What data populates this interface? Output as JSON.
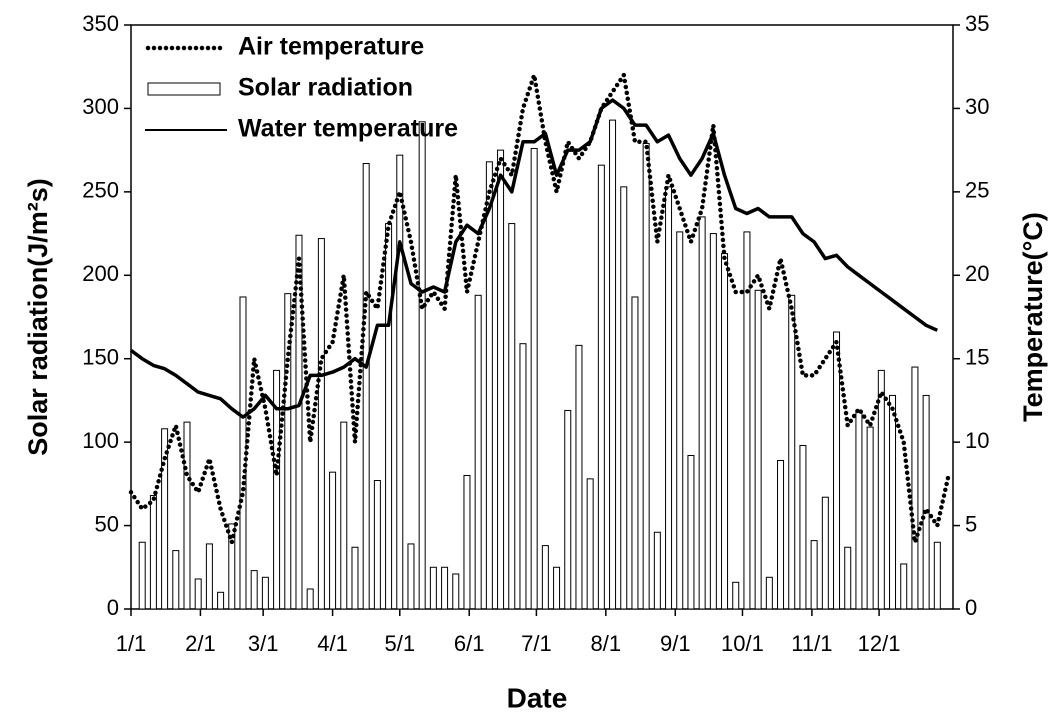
{
  "chart_data": {
    "type": "combo",
    "xlabel": "Date",
    "ylabel": "Solar radiation(J/m²s)",
    "y2label": "Temperature(°C)",
    "xlim": [
      0,
      367
    ],
    "xticks": [
      {
        "value": 0,
        "label": "1/1"
      },
      {
        "value": 31,
        "label": "2/1"
      },
      {
        "value": 59,
        "label": "3/1"
      },
      {
        "value": 90,
        "label": "4/1"
      },
      {
        "value": 120,
        "label": "5/1"
      },
      {
        "value": 151,
        "label": "6/1"
      },
      {
        "value": 181,
        "label": "7/1"
      },
      {
        "value": 212,
        "label": "8/1"
      },
      {
        "value": 243,
        "label": "9/1"
      },
      {
        "value": 273,
        "label": "10/1"
      },
      {
        "value": 304,
        "label": "11/1"
      },
      {
        "value": 334,
        "label": "12/1"
      }
    ],
    "ylim": [
      0,
      350
    ],
    "yticks": [
      0,
      50,
      100,
      150,
      200,
      250,
      300,
      350
    ],
    "y2lim": [
      0,
      35
    ],
    "y2ticks": [
      0,
      5,
      10,
      15,
      20,
      25,
      30,
      35
    ],
    "legend": "upper left",
    "series": [
      {
        "name": "Air temperature",
        "type": "dotted",
        "axis": "y2",
        "color": "#000000",
        "x": [
          0,
          5,
          10,
          15,
          20,
          25,
          30,
          35,
          40,
          45,
          50,
          55,
          60,
          65,
          70,
          75,
          80,
          85,
          90,
          95,
          100,
          105,
          110,
          115,
          120,
          125,
          130,
          135,
          140,
          145,
          150,
          155,
          160,
          165,
          170,
          175,
          180,
          185,
          190,
          195,
          200,
          205,
          210,
          215,
          220,
          225,
          230,
          235,
          240,
          245,
          250,
          255,
          260,
          265,
          270,
          275,
          280,
          285,
          290,
          295,
          300,
          305,
          310,
          315,
          320,
          325,
          330,
          335,
          340,
          345,
          350,
          355,
          360,
          365
        ],
        "values": [
          7,
          6,
          6.5,
          9,
          11,
          8,
          7,
          9,
          6,
          4,
          7,
          15,
          12,
          8,
          15,
          21,
          10,
          15,
          16,
          20,
          10,
          19,
          18,
          23,
          25,
          22,
          18,
          19,
          18,
          26,
          19,
          22,
          25,
          27,
          26,
          30,
          32,
          28,
          25,
          28,
          27,
          28,
          30,
          31,
          32,
          28,
          28,
          22,
          26,
          24,
          22,
          24,
          29,
          21,
          19,
          19,
          20,
          18,
          21,
          18,
          14,
          14,
          15,
          16,
          11,
          12,
          11,
          13,
          12,
          10,
          4,
          6,
          5,
          8
        ]
      },
      {
        "name": "Solar radiation",
        "type": "bar",
        "color": "#ffffff",
        "x": [
          5,
          10,
          15,
          20,
          25,
          30,
          35,
          40,
          45,
          50,
          55,
          60,
          65,
          70,
          75,
          80,
          85,
          90,
          95,
          100,
          105,
          110,
          115,
          120,
          125,
          130,
          135,
          140,
          145,
          150,
          155,
          160,
          165,
          170,
          175,
          180,
          185,
          190,
          195,
          200,
          205,
          210,
          215,
          220,
          225,
          230,
          235,
          240,
          245,
          250,
          255,
          260,
          265,
          270,
          275,
          280,
          285,
          290,
          295,
          300,
          305,
          310,
          315,
          320,
          325,
          330,
          335,
          340,
          345,
          350,
          355,
          360
        ],
        "values": [
          40,
          68,
          108,
          35,
          112,
          18,
          39,
          10,
          51,
          187,
          23,
          19,
          143,
          189,
          224,
          12,
          222,
          82,
          112,
          37,
          267,
          77,
          231,
          272,
          39,
          292,
          25,
          25,
          21,
          80,
          188,
          268,
          275,
          231,
          159,
          276,
          38,
          25,
          119,
          158,
          78,
          266,
          293,
          253,
          187,
          279,
          46,
          253,
          226,
          92,
          235,
          225,
          213,
          16,
          226,
          191,
          19,
          89,
          188,
          98,
          41,
          67,
          166,
          37,
          118,
          109,
          143,
          128,
          27,
          145,
          128,
          40
        ]
      },
      {
        "name": "Water temperature",
        "type": "line",
        "axis": "y2",
        "color": "#000000",
        "x": [
          0,
          5,
          10,
          15,
          20,
          25,
          30,
          35,
          40,
          45,
          50,
          55,
          60,
          65,
          70,
          75,
          80,
          85,
          90,
          95,
          100,
          105,
          110,
          115,
          120,
          125,
          130,
          135,
          140,
          145,
          150,
          155,
          160,
          165,
          170,
          175,
          180,
          185,
          190,
          195,
          200,
          205,
          210,
          215,
          220,
          225,
          230,
          235,
          240,
          245,
          250,
          255,
          260,
          265,
          270,
          275,
          280,
          285,
          290,
          295,
          300,
          305,
          310,
          315,
          320,
          325,
          330,
          335,
          340,
          345,
          350,
          355,
          360
        ],
        "values": [
          15.5,
          15,
          14.6,
          14.4,
          14,
          13.5,
          13,
          12.8,
          12.6,
          12,
          11.5,
          12,
          12.8,
          12,
          12,
          12.2,
          14,
          14,
          14.2,
          14.5,
          15,
          14.5,
          17,
          17,
          22,
          19.5,
          19,
          19.3,
          19,
          22,
          23,
          22.5,
          24,
          26,
          25,
          28,
          28,
          28.5,
          26,
          27.5,
          27.5,
          28,
          30,
          30.5,
          30,
          29,
          29,
          28,
          28.4,
          27,
          26,
          27,
          28.5,
          26,
          24,
          23.7,
          24,
          23.5,
          23.5,
          23.5,
          22.5,
          22,
          21,
          21.2,
          20.5,
          20,
          19.5,
          19,
          18.5,
          18,
          17.5,
          17,
          16.7
        ]
      }
    ]
  }
}
